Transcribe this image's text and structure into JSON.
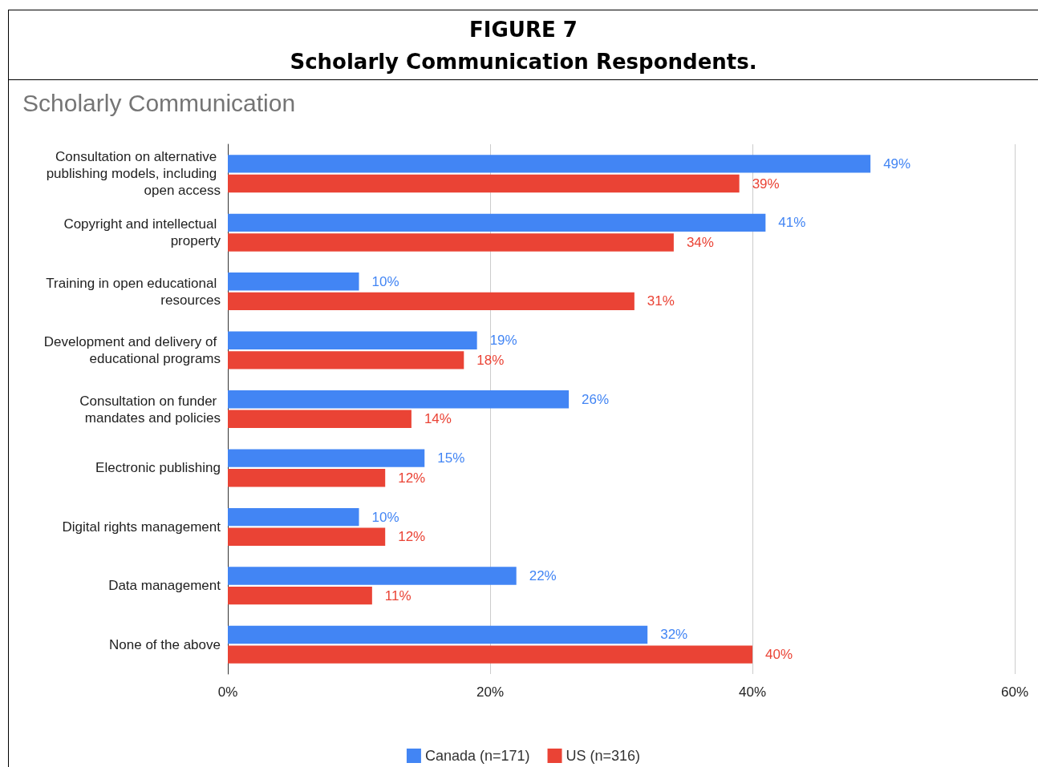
{
  "chart_data": {
    "type": "bar",
    "orientation": "horizontal",
    "title": "FIGURE 7",
    "subtitle": "Scholarly Communication Respondents.",
    "annotations": [
      "Scholarly Communication"
    ],
    "categories": [
      "Consultation on alternative publishing models, including open access",
      "Copyright and intellectual property",
      "Training in open educational resources",
      "Development and delivery of educational programs",
      "Consultation on funder mandates and policies",
      "Electronic publishing",
      "Digital rights management",
      "Data management",
      "None of the above"
    ],
    "series": [
      {
        "name": "Canada (n=171)",
        "color": "#4285f4",
        "values": [
          49,
          41,
          10,
          19,
          26,
          15,
          10,
          22,
          32
        ],
        "value_labels": [
          "49%",
          "41%",
          "10%",
          "19%",
          "26%",
          "15%",
          "10%",
          "22%",
          "32%"
        ]
      },
      {
        "name": "US (n=316)",
        "color": "#ea4335",
        "values": [
          39,
          34,
          31,
          18,
          14,
          12,
          12,
          11,
          40
        ],
        "value_labels": [
          "39%",
          "34%",
          "31%",
          "18%",
          "14%",
          "12%",
          "12%",
          "11%",
          "40%"
        ]
      }
    ],
    "xlim": [
      0,
      60
    ],
    "xticks": [
      {
        "value": 0,
        "label": "0%"
      },
      {
        "value": 20,
        "label": "20%"
      },
      {
        "value": 40,
        "label": "40%"
      },
      {
        "value": 60,
        "label": "60%"
      }
    ],
    "grid": "x",
    "legend": "bottom"
  }
}
